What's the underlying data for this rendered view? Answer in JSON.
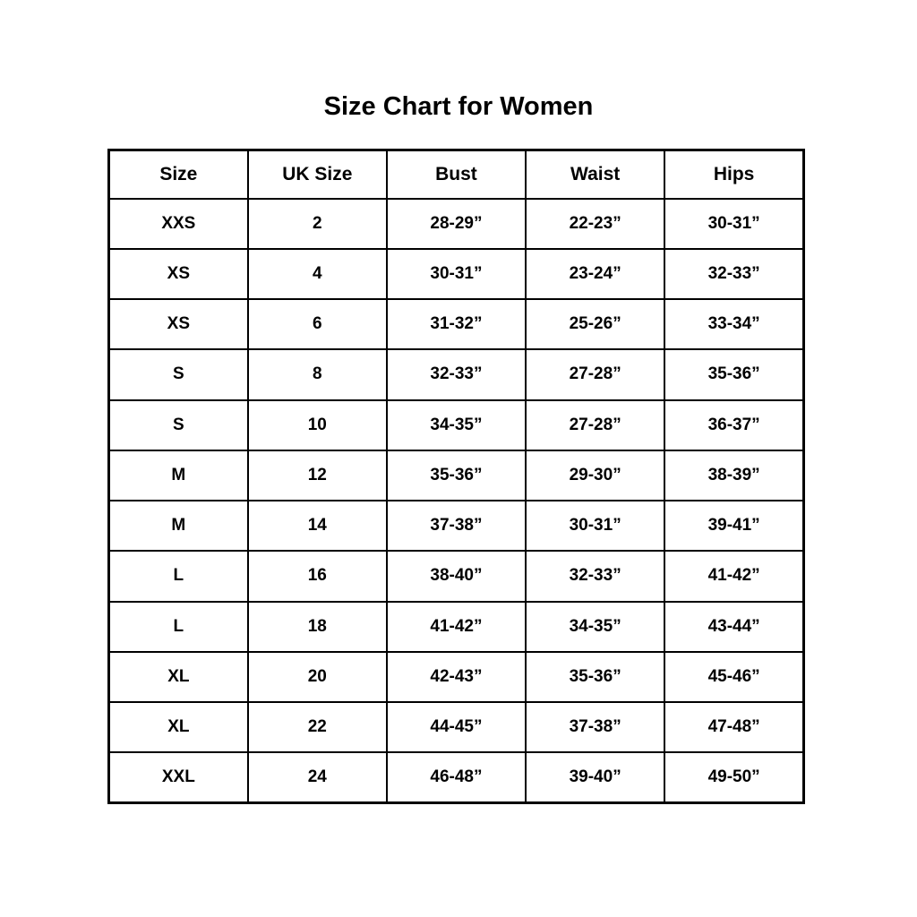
{
  "title": "Size Chart for Women",
  "chart_data": {
    "type": "table",
    "title": "Size Chart for Women",
    "columns": [
      "Size",
      "UK Size",
      "Bust",
      "Waist",
      "Hips"
    ],
    "rows": [
      [
        "XXS",
        "2",
        "28-29”",
        "22-23”",
        "30-31”"
      ],
      [
        "XS",
        "4",
        "30-31”",
        "23-24”",
        "32-33”"
      ],
      [
        "XS",
        "6",
        "31-32”",
        "25-26”",
        "33-34”"
      ],
      [
        "S",
        "8",
        "32-33”",
        "27-28”",
        "35-36”"
      ],
      [
        "S",
        "10",
        "34-35”",
        "27-28”",
        "36-37”"
      ],
      [
        "M",
        "12",
        "35-36”",
        "29-30”",
        "38-39”"
      ],
      [
        "M",
        "14",
        "37-38”",
        "30-31”",
        "39-41”"
      ],
      [
        "L",
        "16",
        "38-40”",
        "32-33”",
        "41-42”"
      ],
      [
        "L",
        "18",
        "41-42”",
        "34-35”",
        "43-44”"
      ],
      [
        "XL",
        "20",
        "42-43”",
        "35-36”",
        "45-46”"
      ],
      [
        "XL",
        "22",
        "44-45”",
        "37-38”",
        "47-48”"
      ],
      [
        "XXL",
        "24",
        "46-48”",
        "39-40”",
        "49-50”"
      ]
    ],
    "layout": {
      "grid": "full-borders",
      "border_color": "#000000",
      "background": "#ffffff",
      "text_align": "center"
    }
  }
}
